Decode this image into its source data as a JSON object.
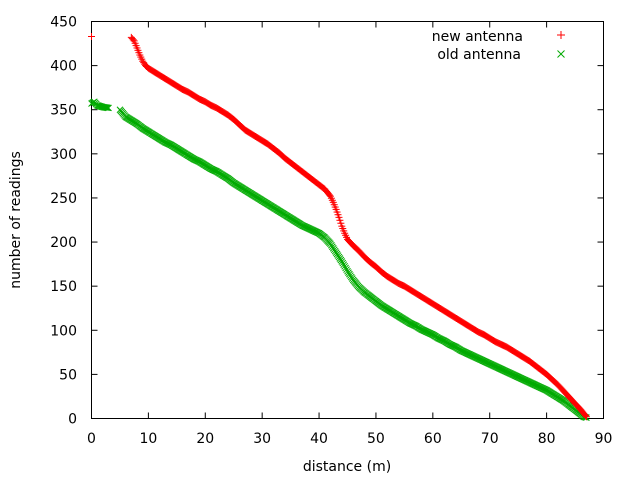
{
  "chart_data": {
    "type": "scatter",
    "title": "",
    "xlabel": "distance (m)",
    "ylabel": "number of readings",
    "xlim": [
      0,
      90
    ],
    "ylim": [
      0,
      450
    ],
    "xticks": [
      0,
      10,
      20,
      30,
      40,
      50,
      60,
      70,
      80,
      90
    ],
    "yticks": [
      0,
      50,
      100,
      150,
      200,
      250,
      300,
      350,
      400,
      450
    ],
    "grid": false,
    "legend": "top-right",
    "series": [
      {
        "name": "new antenna",
        "marker": "plus",
        "color": "#ff0000",
        "points": [
          [
            0,
            433
          ],
          [
            7,
            432
          ],
          [
            7.5,
            428
          ],
          [
            8,
            420
          ],
          [
            8.5,
            412
          ],
          [
            9,
            405
          ],
          [
            9.5,
            400
          ],
          [
            10,
            397
          ],
          [
            11,
            393
          ],
          [
            12,
            389
          ],
          [
            13,
            385
          ],
          [
            14,
            381
          ],
          [
            15,
            377
          ],
          [
            16,
            373
          ],
          [
            17,
            370
          ],
          [
            18,
            366
          ],
          [
            19,
            362
          ],
          [
            20,
            359
          ],
          [
            21,
            355
          ],
          [
            22,
            352
          ],
          [
            23,
            348
          ],
          [
            24,
            344
          ],
          [
            25,
            339
          ],
          [
            26,
            333
          ],
          [
            27,
            327
          ],
          [
            28,
            323
          ],
          [
            29,
            319
          ],
          [
            30,
            315
          ],
          [
            31,
            311
          ],
          [
            32,
            306
          ],
          [
            33,
            301
          ],
          [
            34,
            295
          ],
          [
            35,
            290
          ],
          [
            36,
            285
          ],
          [
            37,
            280
          ],
          [
            38,
            275
          ],
          [
            39,
            270
          ],
          [
            40,
            265
          ],
          [
            41,
            260
          ],
          [
            42,
            252
          ],
          [
            42.5,
            245
          ],
          [
            43,
            237
          ],
          [
            43.5,
            228
          ],
          [
            44,
            218
          ],
          [
            44.5,
            210
          ],
          [
            45,
            203
          ],
          [
            46,
            196
          ],
          [
            47,
            190
          ],
          [
            48,
            183
          ],
          [
            49,
            177
          ],
          [
            50,
            172
          ],
          [
            51,
            166
          ],
          [
            52,
            161
          ],
          [
            53,
            157
          ],
          [
            54,
            153
          ],
          [
            55,
            150
          ],
          [
            56,
            146
          ],
          [
            57,
            142
          ],
          [
            58,
            138
          ],
          [
            59,
            134
          ],
          [
            60,
            130
          ],
          [
            61,
            126
          ],
          [
            62,
            122
          ],
          [
            63,
            118
          ],
          [
            64,
            114
          ],
          [
            65,
            110
          ],
          [
            66,
            106
          ],
          [
            67,
            102
          ],
          [
            68,
            98
          ],
          [
            69,
            95
          ],
          [
            70,
            91
          ],
          [
            71,
            87
          ],
          [
            72,
            84
          ],
          [
            73,
            81
          ],
          [
            74,
            77
          ],
          [
            75,
            73
          ],
          [
            76,
            69
          ],
          [
            77,
            65
          ],
          [
            78,
            60
          ],
          [
            79,
            55
          ],
          [
            80,
            50
          ],
          [
            81,
            44
          ],
          [
            82,
            38
          ],
          [
            83,
            31
          ],
          [
            84,
            24
          ],
          [
            85,
            17
          ],
          [
            86,
            10
          ],
          [
            86.5,
            6
          ],
          [
            87,
            2
          ]
        ]
      },
      {
        "name": "old antenna",
        "marker": "cross",
        "color": "#00aa00",
        "points": [
          [
            0,
            357
          ],
          [
            0.5,
            359
          ],
          [
            1,
            355
          ],
          [
            2,
            353
          ],
          [
            3,
            352
          ],
          [
            5,
            350
          ],
          [
            5.5,
            346
          ],
          [
            6,
            342
          ],
          [
            7,
            338
          ],
          [
            8,
            334
          ],
          [
            9,
            329
          ],
          [
            10,
            325
          ],
          [
            11,
            321
          ],
          [
            12,
            317
          ],
          [
            13,
            313
          ],
          [
            14,
            310
          ],
          [
            15,
            306
          ],
          [
            16,
            302
          ],
          [
            17,
            298
          ],
          [
            18,
            294
          ],
          [
            19,
            291
          ],
          [
            20,
            287
          ],
          [
            21,
            283
          ],
          [
            22,
            280
          ],
          [
            23,
            276
          ],
          [
            24,
            272
          ],
          [
            25,
            267
          ],
          [
            26,
            263
          ],
          [
            27,
            259
          ],
          [
            28,
            255
          ],
          [
            29,
            251
          ],
          [
            30,
            247
          ],
          [
            31,
            243
          ],
          [
            32,
            239
          ],
          [
            33,
            235
          ],
          [
            34,
            231
          ],
          [
            35,
            227
          ],
          [
            36,
            223
          ],
          [
            37,
            219
          ],
          [
            38,
            216
          ],
          [
            39,
            213
          ],
          [
            40,
            210
          ],
          [
            41,
            205
          ],
          [
            42,
            198
          ],
          [
            43,
            188
          ],
          [
            44,
            178
          ],
          [
            45,
            167
          ],
          [
            46,
            157
          ],
          [
            47,
            149
          ],
          [
            48,
            143
          ],
          [
            49,
            138
          ],
          [
            50,
            133
          ],
          [
            51,
            128
          ],
          [
            52,
            124
          ],
          [
            53,
            120
          ],
          [
            54,
            116
          ],
          [
            55,
            112
          ],
          [
            56,
            108
          ],
          [
            57,
            105
          ],
          [
            58,
            101
          ],
          [
            59,
            98
          ],
          [
            60,
            95
          ],
          [
            61,
            91
          ],
          [
            62,
            88
          ],
          [
            63,
            84
          ],
          [
            64,
            81
          ],
          [
            65,
            77
          ],
          [
            66,
            74
          ],
          [
            67,
            71
          ],
          [
            68,
            68
          ],
          [
            69,
            65
          ],
          [
            70,
            62
          ],
          [
            71,
            59
          ],
          [
            72,
            56
          ],
          [
            73,
            53
          ],
          [
            74,
            50
          ],
          [
            75,
            47
          ],
          [
            76,
            44
          ],
          [
            77,
            41
          ],
          [
            78,
            38
          ],
          [
            79,
            35
          ],
          [
            80,
            32
          ],
          [
            81,
            28
          ],
          [
            82,
            24
          ],
          [
            83,
            20
          ],
          [
            84,
            15
          ],
          [
            85,
            10
          ],
          [
            86,
            5
          ],
          [
            86.5,
            2
          ],
          [
            87,
            1
          ]
        ]
      }
    ]
  }
}
